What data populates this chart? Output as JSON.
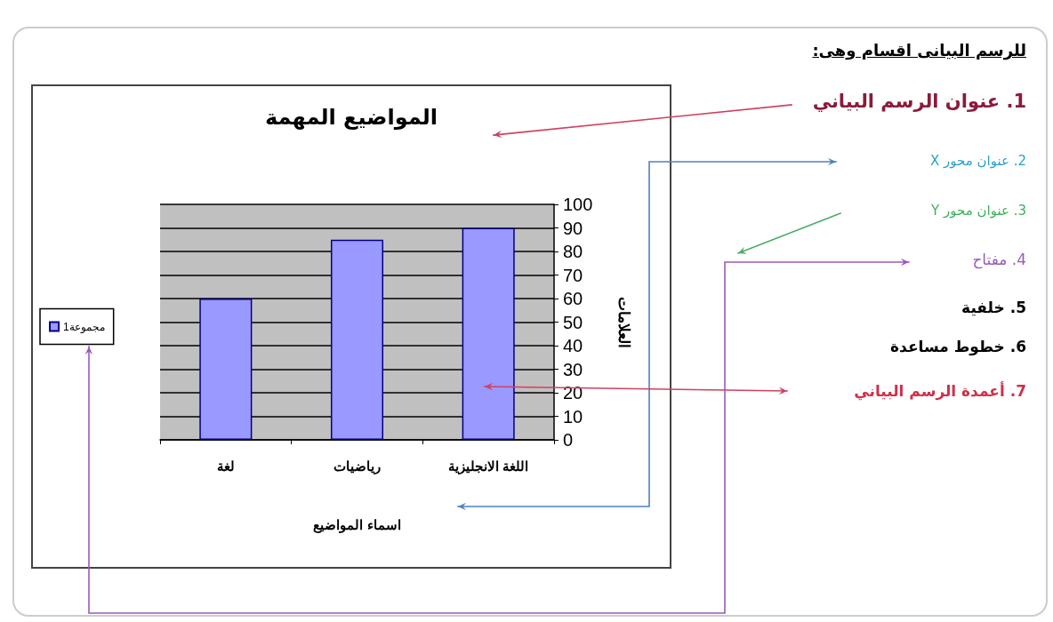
{
  "chart_data": {
    "type": "bar",
    "title": "المواضيع المهمة",
    "xlabel": "اسماء المواضيع",
    "ylabel": "العلامات",
    "categories": [
      "لغة",
      "رياضيات",
      "اللغة الانجليزية"
    ],
    "series": [
      {
        "name": "مجموعة1",
        "color": "#9999ff",
        "values": [
          60,
          85,
          90
        ]
      }
    ],
    "ylim": [
      0,
      100
    ],
    "yticks": [
      0,
      10,
      20,
      30,
      40,
      50,
      60,
      70,
      80,
      90,
      100
    ],
    "grid": "y",
    "legend": "left",
    "annotations": [
      "للرسم البيانى اقسام وهى:",
      "1. عنوان الرسم البياني",
      "2. عنوان محور X",
      "3. عنوان محور Y",
      "4. مفتاح",
      "5. خلفية",
      "6. خطوط مساعدة",
      "7. أعمدة الرسم البياني"
    ]
  }
}
